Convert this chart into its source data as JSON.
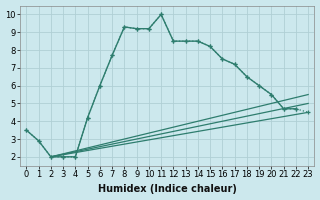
{
  "xlabel": "Humidex (Indice chaleur)",
  "background_color": "#cce8ed",
  "line_color": "#2e7d6e",
  "grid_color": "#b0cfd5",
  "xlim": [
    -0.5,
    23.5
  ],
  "ylim": [
    1.5,
    10.5
  ],
  "yticks": [
    2,
    3,
    4,
    5,
    6,
    7,
    8,
    9,
    10
  ],
  "xticks": [
    0,
    1,
    2,
    3,
    4,
    5,
    6,
    7,
    8,
    9,
    10,
    11,
    12,
    13,
    14,
    15,
    16,
    17,
    18,
    19,
    20,
    21,
    22,
    23
  ],
  "curve_dotted_x": [
    0,
    1,
    2,
    3,
    4,
    5,
    6,
    7,
    8,
    9,
    10,
    11,
    12,
    13,
    14,
    15,
    16,
    17,
    18,
    19,
    20,
    21,
    22,
    23
  ],
  "curve_dotted_y": [
    3.5,
    2.9,
    2.0,
    2.0,
    2.0,
    4.2,
    6.0,
    7.7,
    9.3,
    9.2,
    9.2,
    10.0,
    8.5,
    8.5,
    8.5,
    8.2,
    7.5,
    7.2,
    6.5,
    6.0,
    5.5,
    4.7,
    4.7,
    4.5
  ],
  "curve_solid_x": [
    0,
    1,
    2,
    3,
    4,
    5,
    6,
    7,
    8,
    9,
    10,
    11,
    12,
    13,
    14,
    15,
    16,
    17,
    18,
    19,
    20,
    21,
    22
  ],
  "curve_solid_y": [
    3.5,
    2.9,
    2.0,
    2.0,
    2.0,
    4.2,
    6.0,
    7.7,
    9.3,
    9.2,
    9.2,
    10.0,
    8.5,
    8.5,
    8.5,
    8.2,
    7.5,
    7.2,
    6.5,
    6.0,
    5.5,
    4.7,
    4.7
  ],
  "diag_lines": [
    {
      "x": [
        2,
        23
      ],
      "y": [
        2.0,
        4.5
      ]
    },
    {
      "x": [
        2,
        23
      ],
      "y": [
        2.0,
        5.0
      ]
    },
    {
      "x": [
        2,
        23
      ],
      "y": [
        2.0,
        5.5
      ]
    }
  ],
  "tick_fontsize": 6,
  "xlabel_fontsize": 7
}
